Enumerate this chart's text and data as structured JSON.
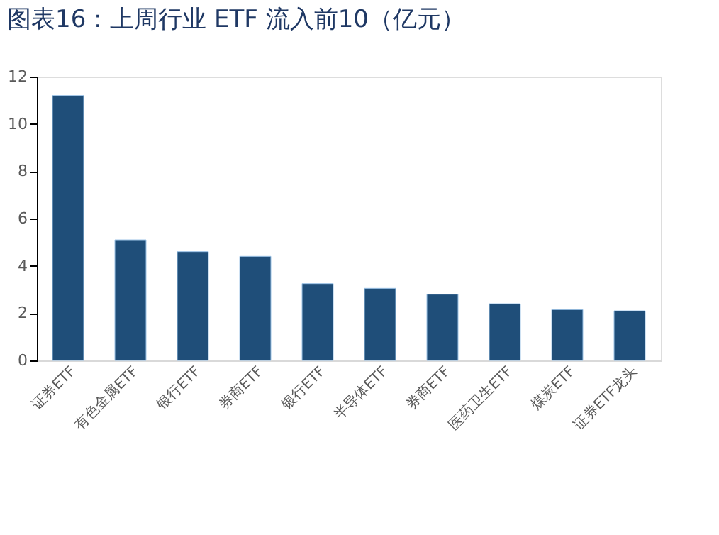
{
  "chart_data": {
    "type": "bar",
    "title": "图表16：上周行业 ETF 流入前10（亿元）",
    "categories": [
      "证券ETF",
      "有色金属ETF",
      "银行ETF",
      "券商ETF",
      "银行ETF",
      "半导体ETF",
      "券商ETF",
      "医药卫生ETF",
      "煤炭ETF",
      "证券ETF龙头"
    ],
    "values": [
      11.2,
      5.1,
      4.6,
      4.4,
      3.25,
      3.05,
      2.8,
      2.4,
      2.15,
      2.1
    ],
    "color": "#1f4e79",
    "ylim": [
      0,
      12
    ],
    "yticks": [
      0,
      2,
      4,
      6,
      8,
      10,
      12
    ],
    "grid": false
  }
}
